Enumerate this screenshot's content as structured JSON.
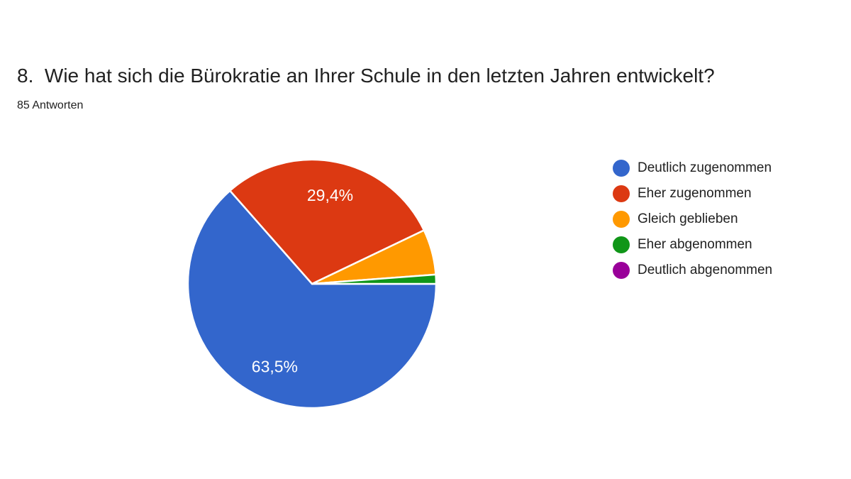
{
  "header": {
    "title": "8.  Wie hat sich die Bürokratie an Ihrer Schule in den letzten Jahren entwickelt?",
    "responses_count": "85 Antworten"
  },
  "chart_data": {
    "type": "pie",
    "title": "8.  Wie hat sich die Bürokratie an Ihrer Schule in den letzten Jahren entwickelt?",
    "subtitle": "85 Antworten",
    "total_responses": 85,
    "legend_position": "right",
    "start_angle_deg": 0,
    "direction": "clockwise",
    "slice_separator_color": "#ffffff",
    "slices": [
      {
        "label": "Deutlich zugenommen",
        "pct": 63.5,
        "pct_label": "63,5%",
        "show_label": true,
        "color": "#3366CC"
      },
      {
        "label": "Eher zugenommen",
        "pct": 29.4,
        "pct_label": "29,4%",
        "show_label": true,
        "color": "#DC3912"
      },
      {
        "label": "Gleich geblieben",
        "pct": 5.9,
        "pct_label": "",
        "show_label": false,
        "color": "#FF9900"
      },
      {
        "label": "Eher abgenommen",
        "pct": 1.2,
        "pct_label": "",
        "show_label": false,
        "color": "#109618"
      },
      {
        "label": "Deutlich abgenommen",
        "pct": 0.0,
        "pct_label": "",
        "show_label": false,
        "color": "#990099"
      }
    ]
  }
}
